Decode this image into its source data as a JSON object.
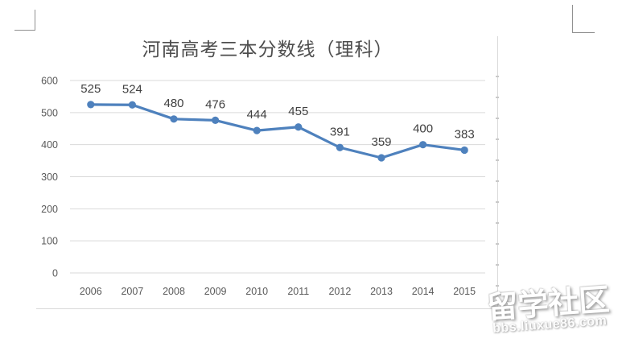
{
  "chart_data": {
    "type": "line",
    "title": "河南高考三本分数线（理科）",
    "categories": [
      "2006",
      "2007",
      "2008",
      "2009",
      "2010",
      "2011",
      "2012",
      "2013",
      "2014",
      "2015"
    ],
    "values": [
      525,
      524,
      480,
      476,
      444,
      455,
      391,
      359,
      400,
      383
    ],
    "xlabel": "",
    "ylabel": "",
    "ylim": [
      0,
      600
    ],
    "yticks": [
      0,
      100,
      200,
      300,
      400,
      500,
      600
    ],
    "grid": true,
    "legend_position": "none",
    "data_labels": true,
    "marker": "circle",
    "line_color": "#4e81bd"
  },
  "colors": {
    "gridline": "#d9d9d9",
    "axis_text": "#595959",
    "data_label_text": "#404040",
    "title_text": "#4d4d4d",
    "frame": "#d9d9d9",
    "crop_mark": "#909090",
    "watermark": "#ffffff"
  },
  "watermark": {
    "title": "留学社区",
    "subtitle": "bbs.liuxue86.com"
  }
}
